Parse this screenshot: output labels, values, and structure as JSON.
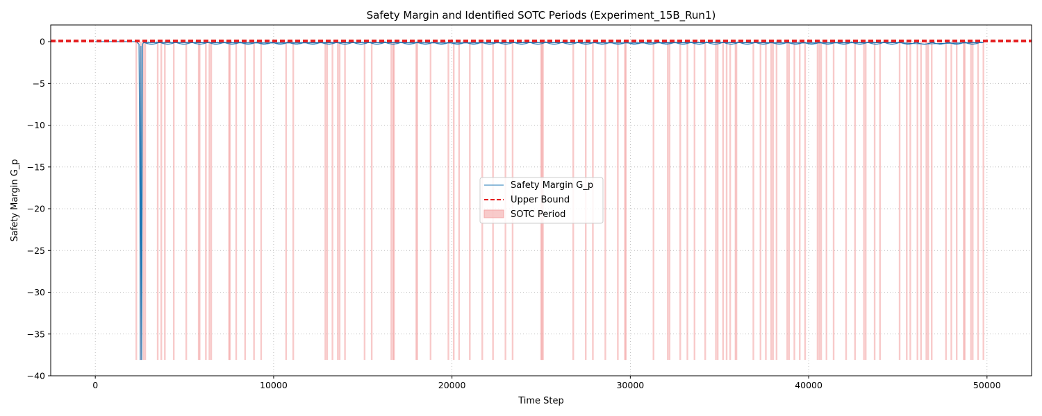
{
  "chart_data": {
    "type": "line",
    "title": "Safety Margin and Identified SOTC Periods (Experiment_15B_Run1)",
    "xlabel": "Time Step",
    "ylabel": "Safety Margin G_p",
    "xlim": [
      -2500,
      52500
    ],
    "ylim": [
      -40,
      2
    ],
    "xticks": [
      0,
      10000,
      20000,
      30000,
      40000,
      50000
    ],
    "yticks": [
      0,
      -5,
      -10,
      -15,
      -20,
      -25,
      -30,
      -35,
      -40
    ],
    "grid": true,
    "legend_position": "center",
    "legend": [
      "Safety Margin G_p",
      "Upper Bound",
      "SOTC Period"
    ],
    "colors": {
      "line": "#1f77b4",
      "bound": "#e41a1c",
      "sotc": "#f4a6a6"
    },
    "series": [
      {
        "name": "Safety Margin G_p",
        "kind": "line",
        "x": [
          0,
          2300,
          2450,
          2500,
          2520,
          2560,
          2600,
          2650,
          2700,
          5000,
          10000,
          15000,
          20000,
          25000,
          30000,
          35000,
          40000,
          45000,
          46500,
          47500,
          49800
        ],
        "y": [
          0,
          0,
          -0.3,
          -18.3,
          -38.1,
          -0.5,
          -38.1,
          -0.3,
          -0.1,
          -0.1,
          -0.15,
          -0.1,
          -0.15,
          -0.1,
          -0.15,
          -0.1,
          -0.15,
          -0.1,
          -0.3,
          -0.2,
          -0.1
        ]
      },
      {
        "name": "Upper Bound",
        "kind": "hline",
        "y": [
          0,
          0.15
        ]
      },
      {
        "name": "SOTC Period",
        "kind": "spans",
        "ymin": -38.1,
        "ymax": 0,
        "x": [
          2300,
          2550,
          2700,
          2800,
          3500,
          3700,
          3900,
          4400,
          5100,
          5800,
          5850,
          6200,
          6400,
          6500,
          7500,
          7550,
          7900,
          8400,
          8900,
          9300,
          10700,
          11100,
          12900,
          13000,
          13300,
          13600,
          13700,
          14000,
          15100,
          15500,
          16600,
          16700,
          16750,
          18000,
          18050,
          18800,
          19800,
          20100,
          20400,
          21000,
          21700,
          22300,
          23000,
          23400,
          25000,
          25050,
          25100,
          26800,
          27500,
          27900,
          28600,
          29300,
          29700,
          29750,
          31300,
          32100,
          32200,
          32800,
          33200,
          33600,
          34200,
          34800,
          34900,
          35200,
          35400,
          35600,
          35900,
          35950,
          36900,
          37300,
          37600,
          37900,
          38000,
          38200,
          38800,
          38900,
          39200,
          39500,
          39800,
          40500,
          40600,
          40700,
          41000,
          41400,
          42100,
          42600,
          43100,
          43200,
          43700,
          44000,
          45100,
          45500,
          45700,
          46100,
          46300,
          46600,
          46700,
          46900,
          47700,
          48000,
          48300,
          48700,
          48750,
          49100,
          49200,
          49500,
          49800
        ]
      }
    ]
  }
}
